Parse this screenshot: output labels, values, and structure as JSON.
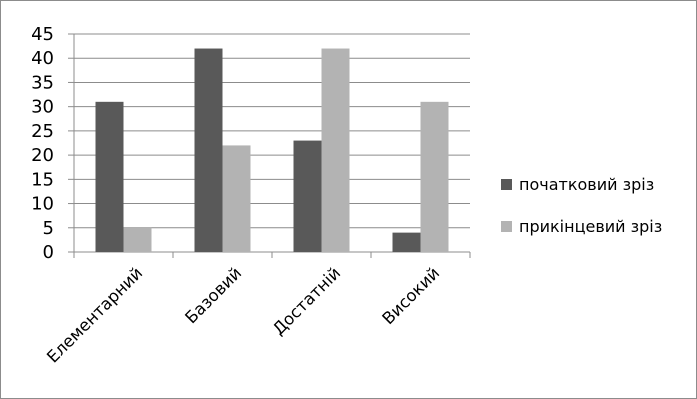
{
  "chart_data": {
    "type": "bar",
    "categories": [
      "Елементарний",
      "Базовий",
      "Достатній",
      "Високий"
    ],
    "series": [
      {
        "name": "початковий зріз",
        "values": [
          31,
          42,
          23,
          4
        ],
        "color": "#595959"
      },
      {
        "name": "прикінцевий зріз",
        "values": [
          5,
          22,
          42,
          31
        ],
        "color": "#b3b3b3"
      }
    ],
    "ylim": [
      0,
      45
    ],
    "yticks": [
      0,
      5,
      10,
      15,
      20,
      25,
      30,
      35,
      40,
      45
    ],
    "grid": true,
    "legend_position": "right",
    "title": "",
    "xlabel": "",
    "ylabel": ""
  }
}
